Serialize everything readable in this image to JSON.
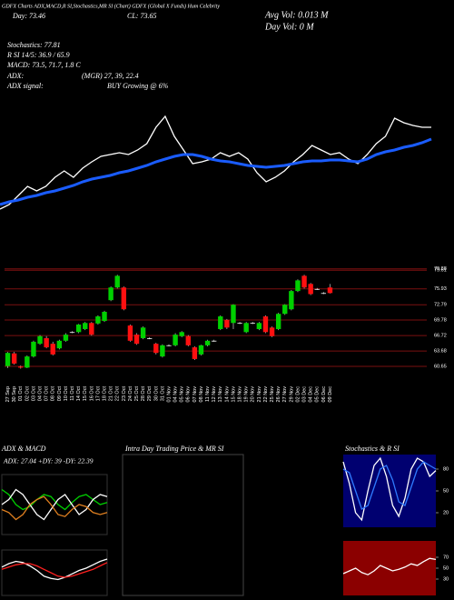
{
  "header": {
    "title": "GDFX Charts ADX,MACD,R SI,Stochastics,MR SI (Chart) GDFX (Global X Funds) Hum Celebrity",
    "close": "CL: 73.65",
    "day": "Day: 73.46",
    "avg_vol": "Avg Vol: 0.013 M",
    "day_vol": "Day Vol: 0 M",
    "stochastics": "Stochastics: 77.81",
    "rsi": "R SI 14/5: 36.9 / 65.9",
    "macd": "MACD: 73.5, 71.7, 1.8 C",
    "adx": "ADX:",
    "adx_values": "(MGR) 27, 39, 22.4",
    "adx_signal": "ADX signal:",
    "signal": "BUY Growing @ 6%"
  },
  "chart_data": [
    {
      "type": "line",
      "ylim": [
        0,
        150
      ],
      "series": [
        {
          "color": "#ffffff",
          "values": [
            20,
            25,
            35,
            45,
            40,
            45,
            55,
            62,
            55,
            65,
            72,
            78,
            80,
            82,
            80,
            85,
            92,
            110,
            122,
            100,
            85,
            70,
            72,
            75,
            82,
            78,
            82,
            75,
            60,
            50,
            55,
            62,
            72,
            80,
            90,
            85,
            80,
            82,
            75,
            70,
            80,
            92,
            100,
            120,
            115,
            112,
            110,
            110
          ]
        },
        {
          "color": "#1a5cff",
          "values": [
            25,
            28,
            30,
            33,
            35,
            38,
            40,
            43,
            46,
            50,
            53,
            55,
            57,
            60,
            62,
            65,
            68,
            72,
            75,
            78,
            80,
            80,
            78,
            75,
            73,
            72,
            70,
            68,
            67,
            66,
            67,
            68,
            70,
            72,
            73,
            73,
            74,
            74,
            73,
            72,
            75,
            80,
            83,
            85,
            88,
            90,
            93,
            97
          ]
        }
      ]
    },
    {
      "type": "candlestick",
      "ylim": [
        57.6,
        80.9
      ],
      "up_color": "#00d000",
      "down_color": "#ff1010",
      "grid": true,
      "grid_color": "#7a1010",
      "yticks": [
        79.88,
        79.61,
        75.93,
        72.79,
        69.78,
        66.72,
        63.68,
        60.65
      ],
      "categories": [
        "27 Sep",
        "30 Sep",
        "01 Oct",
        "02 Oct",
        "03 Oct",
        "04 Oct",
        "07 Oct",
        "08 Oct",
        "09 Oct",
        "10 Oct",
        "11 Oct",
        "14 Oct",
        "15 Oct",
        "16 Oct",
        "17 Oct",
        "18 Oct",
        "21 Oct",
        "22 Oct",
        "23 Oct",
        "24 Oct",
        "25 Oct",
        "28 Oct",
        "29 Oct",
        "30 Oct",
        "31 Oct",
        "01 Nov",
        "04 Nov",
        "05 Nov",
        "06 Nov",
        "07 Nov",
        "08 Nov",
        "11 Nov",
        "12 Nov",
        "13 Nov",
        "14 Nov",
        "15 Nov",
        "18 Nov",
        "19 Nov",
        "20 Nov",
        "21 Nov",
        "22 Nov",
        "25 Nov",
        "26 Nov",
        "27 Nov",
        "29 Nov",
        "02 Dec",
        "03 Dec",
        "04 Dec",
        "05 Dec",
        "06 Dec",
        "09 Dec"
      ],
      "open": [
        60.7,
        63.2,
        60.6,
        60.4,
        62.6,
        65.1,
        66.2,
        65.1,
        64.2,
        65.7,
        67.4,
        67.4,
        68.0,
        69.2,
        69.1,
        69.6,
        73.7,
        76.2,
        76.2,
        68.7,
        66.9,
        66.2,
        66.2,
        65.1,
        62.6,
        64.8,
        64.8,
        66.6,
        66.6,
        64.4,
        63.0,
        64.8,
        65.7,
        68.0,
        69.8,
        69.2,
        69.2,
        67.4,
        69.2,
        68.0,
        70.5,
        68.3,
        68.0,
        71.0,
        71.9,
        75.5,
        78.5,
        76.9,
        75.9,
        75.1,
        76.2
      ],
      "high": [
        63.5,
        63.5,
        60.8,
        62.8,
        65.7,
        66.8,
        66.6,
        65.5,
        65.9,
        67.2,
        67.6,
        69.0,
        69.4,
        69.4,
        70.7,
        71.6,
        76.4,
        78.7,
        76.4,
        68.9,
        67.2,
        68.5,
        66.4,
        65.3,
        65.0,
        65.0,
        67.2,
        67.6,
        66.8,
        64.6,
        64.9,
        65.9,
        65.9,
        70.7,
        70.0,
        72.9,
        69.4,
        69.4,
        69.4,
        69.4,
        70.7,
        68.5,
        71.2,
        72.9,
        75.7,
        77.8,
        78.7,
        77.1,
        76.1,
        75.3,
        76.9
      ],
      "low": [
        60.3,
        61.0,
        60.2,
        60.3,
        62.4,
        64.9,
        64.2,
        62.8,
        64.0,
        65.5,
        67.2,
        67.2,
        67.8,
        66.7,
        68.9,
        69.4,
        73.5,
        76.0,
        71.7,
        65.5,
        64.9,
        66.0,
        66.0,
        63.0,
        62.4,
        64.6,
        64.6,
        66.4,
        64.6,
        61.9,
        62.8,
        64.6,
        65.5,
        67.8,
        68.0,
        68.0,
        69.0,
        67.2,
        69.0,
        67.8,
        67.2,
        66.4,
        67.8,
        70.8,
        71.7,
        75.3,
        76.0,
        74.7,
        75.7,
        74.9,
        75.0
      ],
      "close": [
        63.3,
        61.2,
        60.4,
        62.6,
        65.5,
        66.6,
        64.4,
        63.0,
        65.7,
        66.9,
        67.4,
        68.9,
        69.2,
        66.9,
        70.5,
        71.4,
        76.2,
        78.5,
        71.9,
        65.7,
        65.1,
        68.3,
        66.2,
        63.3,
        64.8,
        64.8,
        66.9,
        67.4,
        64.8,
        62.1,
        64.8,
        65.7,
        65.7,
        70.5,
        68.3,
        72.8,
        69.2,
        69.2,
        69.2,
        69.2,
        67.4,
        66.6,
        71.0,
        72.8,
        75.5,
        77.6,
        76.2,
        74.9,
        75.9,
        75.1,
        75.1
      ]
    },
    {
      "type": "line",
      "title": "ADX & MACD",
      "subtitle": "ADX: 27.04 +DY: 39 -DY: 22.39",
      "ylim": [
        0,
        60
      ],
      "series": [
        {
          "color": "#00d000",
          "values": [
            45,
            40,
            30,
            25,
            28,
            35,
            40,
            38,
            30,
            25,
            32,
            38,
            40,
            35,
            30,
            32
          ]
        },
        {
          "color": "#ffffff",
          "values": [
            30,
            35,
            45,
            40,
            30,
            20,
            15,
            25,
            35,
            40,
            30,
            20,
            25,
            35,
            40,
            38
          ]
        },
        {
          "color": "#e08020",
          "values": [
            25,
            22,
            15,
            20,
            30,
            35,
            38,
            30,
            20,
            18,
            25,
            30,
            28,
            22,
            20,
            22
          ]
        }
      ]
    },
    {
      "type": "line",
      "ylim": [
        -2,
        2
      ],
      "series": [
        {
          "color": "#ffffff",
          "values": [
            0.5,
            0.8,
            1.0,
            0.9,
            0.6,
            0.2,
            -0.3,
            -0.5,
            -0.6,
            -0.4,
            -0.1,
            0.2,
            0.4,
            0.7,
            1.0,
            1.2
          ]
        },
        {
          "color": "#ff2020",
          "values": [
            0.3,
            0.5,
            0.7,
            0.8,
            0.8,
            0.6,
            0.3,
            0,
            -0.3,
            -0.4,
            -0.3,
            -0.1,
            0.1,
            0.3,
            0.6,
            0.9
          ]
        }
      ]
    },
    {
      "type": "blank",
      "title": "Intra Day Trading Price & MR SI"
    },
    {
      "type": "line",
      "title": "Stochastics & R SI",
      "ylim": [
        0,
        100
      ],
      "yticks": [
        80,
        50,
        20
      ],
      "series": [
        {
          "color": "#ffffff",
          "values": [
            90,
            60,
            20,
            10,
            50,
            85,
            95,
            70,
            30,
            15,
            40,
            80,
            95,
            90,
            70,
            78
          ]
        },
        {
          "color": "#2f7bff",
          "values": [
            80,
            75,
            50,
            25,
            30,
            55,
            80,
            85,
            65,
            35,
            30,
            55,
            80,
            90,
            85,
            80
          ]
        }
      ]
    },
    {
      "type": "line",
      "ylim": [
        0,
        100
      ],
      "yticks": [
        70,
        50,
        30
      ],
      "series": [
        {
          "color": "#ffffff",
          "values": [
            40,
            45,
            50,
            42,
            38,
            45,
            55,
            50,
            45,
            48,
            52,
            58,
            55,
            62,
            68,
            66
          ]
        }
      ]
    }
  ]
}
